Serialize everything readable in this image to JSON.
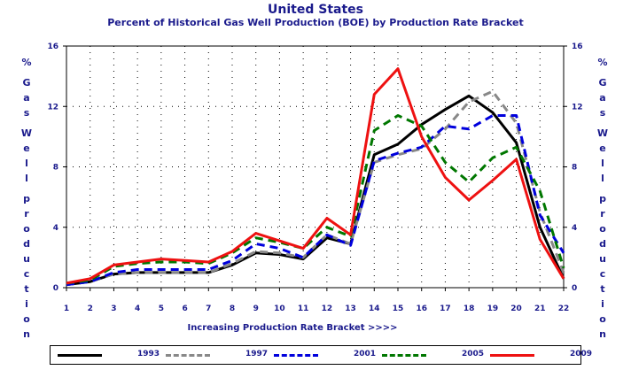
{
  "chart_data": {
    "type": "line",
    "title": "United States",
    "subtitle": "Percent of Historical Gas Well Production (BOE) by Production Rate Bracket",
    "xlabel": "Increasing Production Rate Bracket >>>>",
    "ylabel_left": "% Gas Well production",
    "ylabel_right": "% Gas Well production",
    "x": [
      1,
      2,
      3,
      4,
      5,
      6,
      7,
      8,
      9,
      10,
      11,
      12,
      13,
      14,
      15,
      16,
      17,
      18,
      19,
      20,
      21,
      22
    ],
    "xlim": [
      1,
      22
    ],
    "ylim": [
      0,
      16
    ],
    "yticks": [
      0,
      4,
      8,
      12,
      16
    ],
    "grid": true,
    "legend_position": "bottom",
    "series": [
      {
        "name": "1993",
        "color": "#000000",
        "dash": "solid",
        "values": [
          0.2,
          0.4,
          0.9,
          1.0,
          1.0,
          1.0,
          1.0,
          1.5,
          2.3,
          2.2,
          1.9,
          3.3,
          2.9,
          8.8,
          9.5,
          10.8,
          11.8,
          12.7,
          11.6,
          9.6,
          4.0,
          0.6
        ]
      },
      {
        "name": "1997",
        "color": "#888888",
        "dash": "dash",
        "values": [
          0.2,
          0.4,
          0.9,
          1.0,
          1.0,
          1.0,
          1.0,
          1.6,
          2.4,
          2.3,
          2.0,
          3.5,
          2.9,
          8.3,
          8.8,
          9.2,
          10.5,
          12.3,
          13.0,
          10.9,
          5.0,
          1.0
        ]
      },
      {
        "name": "2001",
        "color": "#0000dd",
        "dash": "dash",
        "values": [
          0.2,
          0.4,
          1.0,
          1.2,
          1.2,
          1.2,
          1.2,
          1.8,
          2.9,
          2.6,
          2.0,
          3.5,
          2.8,
          8.4,
          8.9,
          9.3,
          10.7,
          10.5,
          11.4,
          11.4,
          4.8,
          2.3
        ]
      },
      {
        "name": "2005",
        "color": "#007700",
        "dash": "dash",
        "values": [
          0.3,
          0.5,
          1.4,
          1.6,
          1.7,
          1.7,
          1.6,
          2.3,
          3.3,
          3.0,
          2.6,
          4.0,
          3.4,
          10.4,
          11.4,
          10.7,
          8.3,
          7.0,
          8.6,
          9.3,
          6.4,
          1.3
        ]
      },
      {
        "name": "2009",
        "color": "#ee1111",
        "dash": "solid",
        "values": [
          0.3,
          0.6,
          1.5,
          1.7,
          1.9,
          1.8,
          1.7,
          2.4,
          3.6,
          3.1,
          2.6,
          4.6,
          3.5,
          12.8,
          14.5,
          10.0,
          7.3,
          5.8,
          7.1,
          8.5,
          3.2,
          0.6
        ]
      }
    ]
  }
}
